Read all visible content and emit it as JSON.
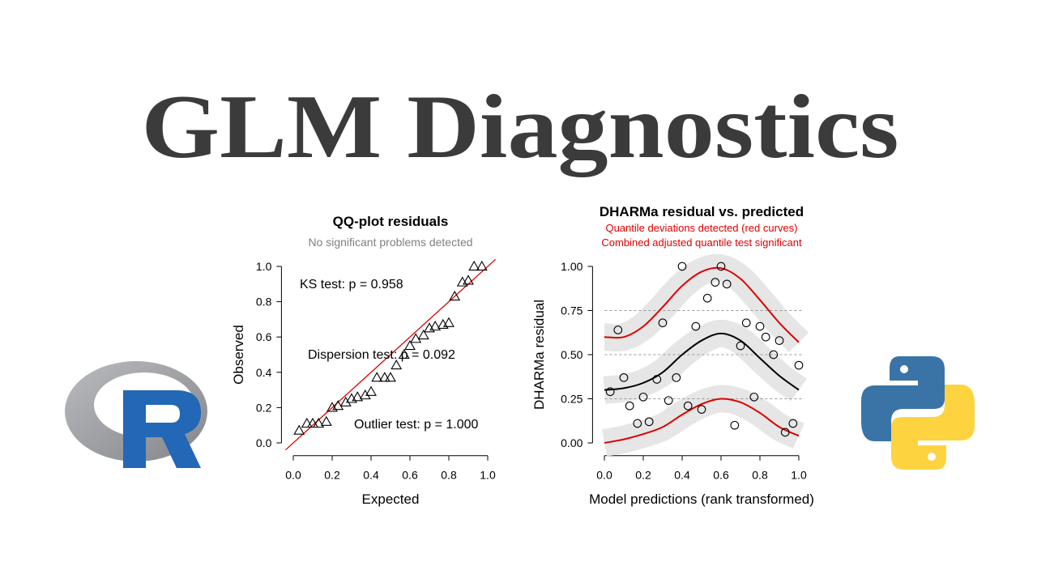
{
  "title": "GLM Diagnostics",
  "chart_data": [
    {
      "type": "scatter",
      "title": "QQ-plot residuals",
      "subtitle": [
        "No significant problems detected"
      ],
      "subtitle_color": "#808080",
      "x_label": "Expected",
      "y_label": "Observed",
      "xlim": [
        -0.04,
        1.04
      ],
      "ylim": [
        -0.04,
        1.04
      ],
      "xticks": [
        {
          "value": 0,
          "label": "0.0"
        },
        0.2,
        0.4,
        0.6,
        0.8,
        {
          "value": 1,
          "label": "1.0"
        }
      ],
      "yticks": [
        {
          "value": 0,
          "label": "0.0"
        },
        0.2,
        0.4,
        0.6,
        0.8,
        {
          "value": 1,
          "label": "1.0"
        }
      ],
      "annotations": [
        "KS test: p = 0.958",
        "Dispersion test: p = 0.092",
        "Outlier test: p = 1.000"
      ],
      "reference_line": {
        "intercept": 0,
        "slope": 1,
        "color": "#dd0000"
      },
      "series": [
        {
          "type": "scatter",
          "marker": "triangle",
          "color": "#000000",
          "x": [
            0.03,
            0.07,
            0.1,
            0.13,
            0.17,
            0.2,
            0.23,
            0.27,
            0.3,
            0.33,
            0.37,
            0.4,
            0.43,
            0.47,
            0.5,
            0.53,
            0.57,
            0.6,
            0.63,
            0.67,
            0.7,
            0.73,
            0.77,
            0.8,
            0.83,
            0.87,
            0.9,
            0.93,
            0.97
          ],
          "values": [
            0.07,
            0.11,
            0.11,
            0.11,
            0.12,
            0.2,
            0.21,
            0.23,
            0.25,
            0.26,
            0.27,
            0.29,
            0.37,
            0.37,
            0.37,
            0.44,
            0.5,
            0.55,
            0.59,
            0.61,
            0.65,
            0.66,
            0.67,
            0.68,
            0.83,
            0.91,
            0.92,
            1.0,
            1.0
          ]
        }
      ]
    },
    {
      "type": "scatter",
      "title": "DHARMa residual vs. predicted",
      "subtitle": [
        "Quantile deviations detected (red curves)",
        "Combined adjusted quantile test significant"
      ],
      "subtitle_color": "#dd0000",
      "x_label": "Model predictions (rank transformed)",
      "y_label": "DHARMa residual",
      "xlim": [
        -0.04,
        1.04
      ],
      "ylim": [
        -0.04,
        1.04
      ],
      "xticks": [
        {
          "value": 0,
          "label": "0.0"
        },
        0.2,
        0.4,
        0.6,
        0.8,
        {
          "value": 1,
          "label": "1.0"
        }
      ],
      "yticks": [
        {
          "value": 0,
          "label": "0.00"
        },
        0.25,
        {
          "value": 0.5,
          "label": "0.50"
        },
        0.75,
        {
          "value": 1,
          "label": "1.00"
        }
      ],
      "hlines": [
        0.25,
        0.5,
        0.75
      ],
      "band_color": "#e2e2e2",
      "series": [
        {
          "type": "line",
          "color": "#dd0000",
          "x": [
            0,
            0.1,
            0.2,
            0.3,
            0.4,
            0.5,
            0.6,
            0.7,
            0.8,
            0.9,
            1
          ],
          "values": [
            0.0,
            0.02,
            0.05,
            0.09,
            0.16,
            0.22,
            0.25,
            0.23,
            0.17,
            0.09,
            0.04
          ]
        },
        {
          "type": "line",
          "color": "#000000",
          "x": [
            0,
            0.1,
            0.2,
            0.3,
            0.4,
            0.5,
            0.6,
            0.7,
            0.8,
            0.9,
            1
          ],
          "values": [
            0.3,
            0.31,
            0.34,
            0.4,
            0.5,
            0.58,
            0.62,
            0.58,
            0.48,
            0.38,
            0.3
          ]
        },
        {
          "type": "line",
          "color": "#dd0000",
          "x": [
            0,
            0.1,
            0.2,
            0.3,
            0.4,
            0.5,
            0.6,
            0.7,
            0.8,
            0.9,
            1
          ],
          "values": [
            0.6,
            0.6,
            0.66,
            0.77,
            0.89,
            0.97,
            0.99,
            0.93,
            0.81,
            0.68,
            0.57
          ]
        },
        {
          "type": "scatter",
          "marker": "circle",
          "color": "#000000",
          "x": [
            0.03,
            0.07,
            0.1,
            0.13,
            0.17,
            0.2,
            0.23,
            0.27,
            0.3,
            0.33,
            0.37,
            0.4,
            0.43,
            0.47,
            0.5,
            0.53,
            0.57,
            0.6,
            0.63,
            0.67,
            0.7,
            0.73,
            0.77,
            0.8,
            0.83,
            0.87,
            0.9,
            0.93,
            0.97,
            1.0
          ],
          "values": [
            0.29,
            0.64,
            0.37,
            0.21,
            0.11,
            0.26,
            0.12,
            0.36,
            0.68,
            0.24,
            0.37,
            1.0,
            0.21,
            0.66,
            0.19,
            0.82,
            0.91,
            1.0,
            0.9,
            0.1,
            0.55,
            0.68,
            0.26,
            0.66,
            0.6,
            0.5,
            0.58,
            0.06,
            0.11,
            0.44
          ]
        }
      ]
    }
  ]
}
